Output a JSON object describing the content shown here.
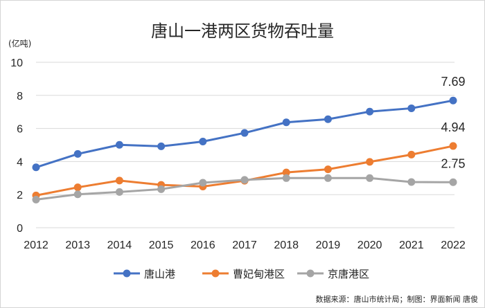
{
  "chart_data": {
    "type": "line",
    "title": "唐山一港两区货物吞吐量",
    "unit_label": "(亿吨)",
    "xlabel": "",
    "ylabel": "",
    "x": [
      "2012",
      "2013",
      "2014",
      "2015",
      "2016",
      "2017",
      "2018",
      "2019",
      "2020",
      "2021",
      "2022"
    ],
    "ylim": [
      0,
      10
    ],
    "yticks": [
      0,
      2,
      4,
      6,
      8,
      10
    ],
    "grid": "horizontal",
    "legend_position": "bottom",
    "series": [
      {
        "name": "唐山港",
        "color": "#4472c4",
        "values": [
          3.65,
          4.46,
          5.01,
          4.92,
          5.21,
          5.73,
          6.37,
          6.56,
          7.02,
          7.22,
          7.69
        ],
        "end_label": "7.69"
      },
      {
        "name": "曹妃甸港区",
        "color": "#ed7d31",
        "values": [
          1.95,
          2.44,
          2.85,
          2.59,
          2.49,
          2.84,
          3.34,
          3.53,
          3.98,
          4.42,
          4.94
        ],
        "end_label": "4.94"
      },
      {
        "name": "京唐港区",
        "color": "#a5a5a5",
        "values": [
          1.7,
          2.02,
          2.16,
          2.33,
          2.72,
          2.89,
          3.0,
          3.0,
          3.0,
          2.76,
          2.75
        ],
        "end_label": "2.75"
      }
    ],
    "source": "数据来源：唐山市统计局；制图：界面新闻 唐俊"
  }
}
